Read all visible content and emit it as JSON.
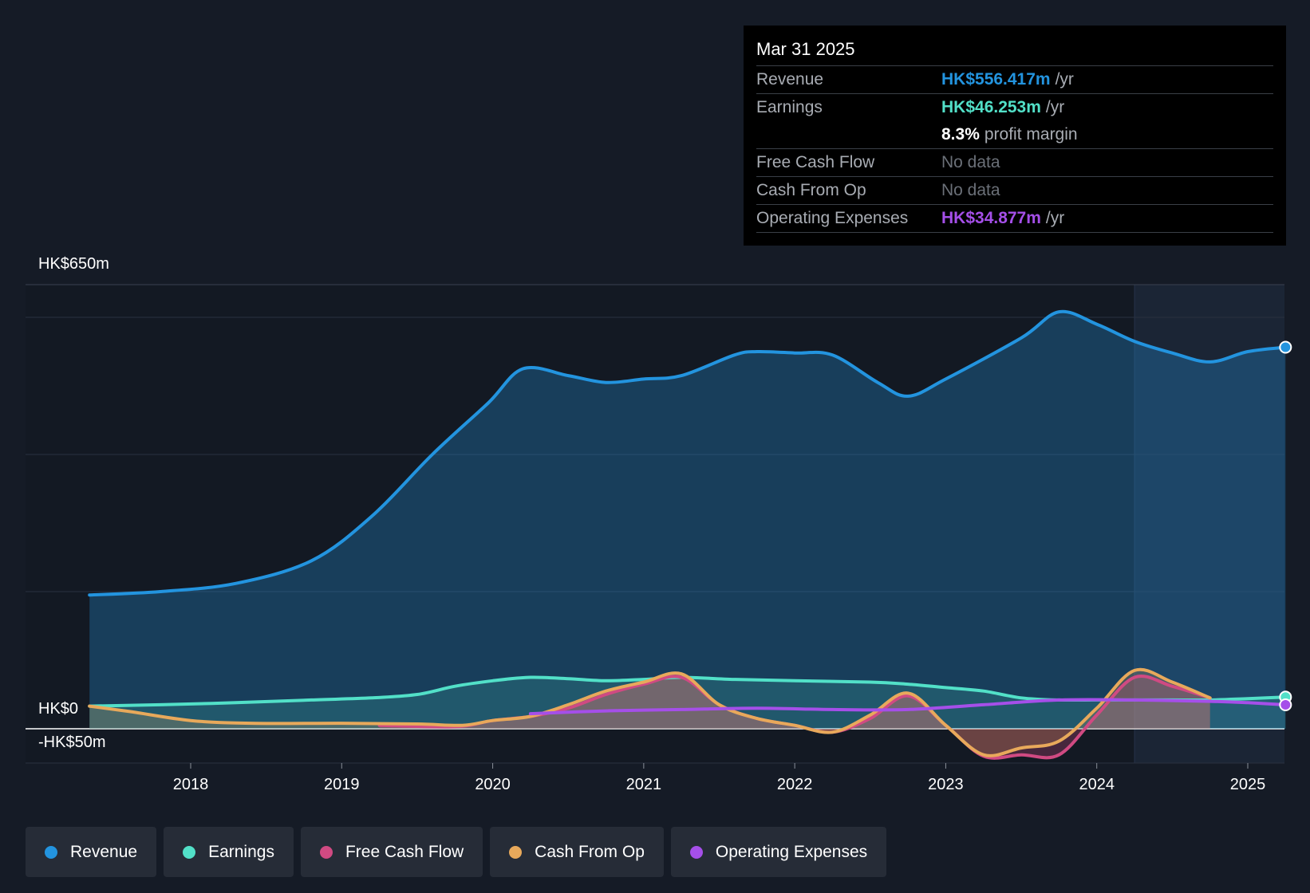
{
  "chart_data": {
    "type": "line",
    "y_axis": {
      "top_label": "HK$650m",
      "zero_label": "HK$0",
      "bottom_label": "-HK$50m",
      "ylim": [
        -50,
        650
      ],
      "gridlines": [
        0,
        200,
        400,
        600
      ]
    },
    "x_ticks": [
      "2018",
      "2019",
      "2020",
      "2021",
      "2022",
      "2023",
      "2024",
      "2025"
    ],
    "xlim": [
      2017.1,
      2025.25
    ],
    "forecast_region_start": 2024.25,
    "series": [
      {
        "name": "Revenue",
        "color": "#2394df",
        "points": [
          [
            2017.33,
            195
          ],
          [
            2017.8,
            200
          ],
          [
            2018.3,
            212
          ],
          [
            2018.8,
            245
          ],
          [
            2019.2,
            310
          ],
          [
            2019.6,
            400
          ],
          [
            2019.97,
            475
          ],
          [
            2020.2,
            525
          ],
          [
            2020.5,
            515
          ],
          [
            2020.75,
            505
          ],
          [
            2021.0,
            510
          ],
          [
            2021.25,
            515
          ],
          [
            2021.6,
            545
          ],
          [
            2021.75,
            550
          ],
          [
            2022.0,
            548
          ],
          [
            2022.25,
            545
          ],
          [
            2022.55,
            505
          ],
          [
            2022.75,
            485
          ],
          [
            2023.0,
            510
          ],
          [
            2023.5,
            570
          ],
          [
            2023.75,
            608
          ],
          [
            2024.0,
            590
          ],
          [
            2024.25,
            565
          ],
          [
            2024.5,
            548
          ],
          [
            2024.75,
            535
          ],
          [
            2025.0,
            550
          ],
          [
            2025.25,
            556.417
          ]
        ]
      },
      {
        "name": "Earnings",
        "color": "#52e0c8",
        "points": [
          [
            2017.33,
            33
          ],
          [
            2017.8,
            35
          ],
          [
            2018.3,
            38
          ],
          [
            2018.8,
            42
          ],
          [
            2019.2,
            45
          ],
          [
            2019.5,
            50
          ],
          [
            2019.75,
            62
          ],
          [
            2020.0,
            70
          ],
          [
            2020.25,
            75
          ],
          [
            2020.5,
            73
          ],
          [
            2020.75,
            70
          ],
          [
            2021.0,
            72
          ],
          [
            2021.25,
            75
          ],
          [
            2021.6,
            72
          ],
          [
            2022.0,
            70
          ],
          [
            2022.5,
            68
          ],
          [
            2022.75,
            65
          ],
          [
            2023.0,
            60
          ],
          [
            2023.25,
            55
          ],
          [
            2023.5,
            45
          ],
          [
            2023.75,
            42
          ],
          [
            2024.0,
            42
          ],
          [
            2024.25,
            42
          ],
          [
            2024.5,
            42
          ],
          [
            2024.75,
            42
          ],
          [
            2025.0,
            44
          ],
          [
            2025.25,
            46.253
          ]
        ]
      },
      {
        "name": "Free Cash Flow",
        "color": "#d04a82",
        "points": [
          [
            2019.25,
            5
          ],
          [
            2019.75,
            3
          ],
          [
            2020.0,
            12
          ],
          [
            2020.25,
            18
          ],
          [
            2020.5,
            30
          ],
          [
            2020.75,
            50
          ],
          [
            2021.0,
            65
          ],
          [
            2021.25,
            75
          ],
          [
            2021.5,
            35
          ],
          [
            2021.75,
            15
          ],
          [
            2022.0,
            5
          ],
          [
            2022.25,
            -5
          ],
          [
            2022.5,
            15
          ],
          [
            2022.75,
            48
          ],
          [
            2023.0,
            5
          ],
          [
            2023.25,
            -40
          ],
          [
            2023.5,
            -38
          ],
          [
            2023.75,
            -38
          ],
          [
            2024.0,
            20
          ],
          [
            2024.25,
            75
          ],
          [
            2024.5,
            62
          ],
          [
            2024.75,
            45
          ]
        ]
      },
      {
        "name": "Cash From Op",
        "color": "#e8a95b",
        "points": [
          [
            2017.33,
            33
          ],
          [
            2017.6,
            25
          ],
          [
            2018.0,
            12
          ],
          [
            2018.4,
            8
          ],
          [
            2019.0,
            8
          ],
          [
            2019.5,
            7
          ],
          [
            2019.8,
            5
          ],
          [
            2020.0,
            12
          ],
          [
            2020.25,
            18
          ],
          [
            2020.5,
            35
          ],
          [
            2020.75,
            55
          ],
          [
            2021.0,
            68
          ],
          [
            2021.25,
            80
          ],
          [
            2021.5,
            35
          ],
          [
            2021.75,
            15
          ],
          [
            2022.0,
            5
          ],
          [
            2022.25,
            -5
          ],
          [
            2022.5,
            20
          ],
          [
            2022.75,
            52
          ],
          [
            2023.0,
            5
          ],
          [
            2023.25,
            -38
          ],
          [
            2023.5,
            -28
          ],
          [
            2023.75,
            -18
          ],
          [
            2024.0,
            30
          ],
          [
            2024.25,
            85
          ],
          [
            2024.5,
            68
          ],
          [
            2024.75,
            45
          ]
        ]
      },
      {
        "name": "Operating Expenses",
        "color": "#a54fe9",
        "points": [
          [
            2020.25,
            22
          ],
          [
            2020.75,
            26
          ],
          [
            2021.25,
            28
          ],
          [
            2021.75,
            30
          ],
          [
            2022.25,
            28
          ],
          [
            2022.75,
            28
          ],
          [
            2023.25,
            35
          ],
          [
            2023.75,
            42
          ],
          [
            2024.25,
            42
          ],
          [
            2024.75,
            40
          ],
          [
            2025.0,
            38
          ],
          [
            2025.25,
            34.877
          ]
        ]
      }
    ]
  },
  "tooltip": {
    "date": "Mar 31 2025",
    "rows": [
      {
        "label": "Revenue",
        "value": "HK$556.417m",
        "unit": "/yr",
        "color": "#2394df"
      },
      {
        "label": "Earnings",
        "value": "HK$46.253m",
        "unit": "/yr",
        "color": "#52e0c8"
      },
      {
        "label": "",
        "value": "8.3%",
        "unit": "profit margin",
        "color": "#ffffff"
      },
      {
        "label": "Free Cash Flow",
        "value": "No data",
        "unit": "",
        "color": "#6b7078"
      },
      {
        "label": "Cash From Op",
        "value": "No data",
        "unit": "",
        "color": "#6b7078"
      },
      {
        "label": "Operating Expenses",
        "value": "HK$34.877m",
        "unit": "/yr",
        "color": "#a54fe9"
      }
    ]
  },
  "legend": [
    {
      "label": "Revenue",
      "color": "#2394df"
    },
    {
      "label": "Earnings",
      "color": "#52e0c8"
    },
    {
      "label": "Free Cash Flow",
      "color": "#d04a82"
    },
    {
      "label": "Cash From Op",
      "color": "#e8a95b"
    },
    {
      "label": "Operating Expenses",
      "color": "#a54fe9"
    }
  ]
}
